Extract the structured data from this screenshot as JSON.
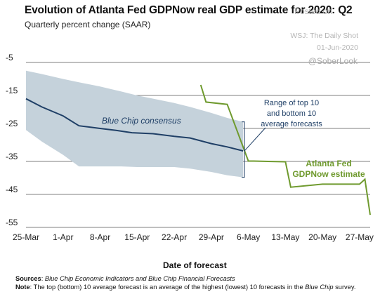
{
  "header": {
    "title": "Evolution of Atlanta Fed GDPNow real GDP estimate for 2020: Q2",
    "subtitle": "Quarterly percent change (SAAR)"
  },
  "watermark": {
    "posted": "Posted on",
    "source": "WSJ: The Daily Shot",
    "date": "01-Jun-2020",
    "handle": "@SoberLook"
  },
  "notes": {
    "sources_label": "Sources",
    "sources_text": "Blue Chip Economic Indicators and Blue Chip Financial Forecasts",
    "note_label": "Note",
    "note_text_1": "The top (bottom) 10 average forecast is an average of the highest (lowest) 10 forecasts in the ",
    "note_italic": "Blue Chip",
    "note_text_2": " survey."
  },
  "chart_data": {
    "type": "line",
    "xlabel": "Date of forecast",
    "ylabel": "",
    "xlim": [
      0,
      65
    ],
    "ylim": [
      -55,
      -5
    ],
    "ytick_values": [
      -5,
      -15,
      -25,
      -35,
      -45,
      -55
    ],
    "ytick_labels": [
      "-5",
      "-15",
      "-25",
      "-35",
      "-45",
      "-55"
    ],
    "xtick_values": [
      0,
      7,
      14,
      21,
      28,
      35,
      42,
      49,
      56,
      63
    ],
    "xtick_labels": [
      "25-Mar",
      "1-Apr",
      "8-Apr",
      "15-Apr",
      "22-Apr",
      "29-Apr",
      "6-May",
      "13-May",
      "20-May",
      "27-May"
    ],
    "grid": "horizontal",
    "colors": {
      "band": "#c5d2db",
      "consensus": "#1f3f66",
      "gdpnow": "#6f9a2e",
      "grid": "#555555",
      "annotation": "#1f3f66"
    },
    "band": {
      "name": "Range of top 10 and bottom 10 average forecasts",
      "x": [
        0,
        3,
        7,
        10,
        14,
        18,
        21,
        25,
        28,
        31,
        35,
        38,
        41
      ],
      "upper": [
        -7.5,
        -8.5,
        -10,
        -11,
        -12.3,
        -13.8,
        -15,
        -16.3,
        -17.3,
        -18.5,
        -20.3,
        -21.8,
        -23
      ],
      "lower": [
        -25.5,
        -29,
        -33,
        -36.5,
        -36.5,
        -36.5,
        -36.7,
        -36.7,
        -36.7,
        -37.2,
        -38.2,
        -39.2,
        -39.8
      ]
    },
    "series": [
      {
        "name": "Blue Chip consensus",
        "x": [
          0,
          3,
          7,
          10,
          14,
          17,
          20,
          24,
          28,
          31,
          35,
          38,
          41
        ],
        "values": [
          -16,
          -18.5,
          -21.2,
          -24.2,
          -25,
          -25.6,
          -26.3,
          -26.6,
          -27.4,
          -27.9,
          -29.6,
          -30.6,
          -31.8
        ]
      },
      {
        "name": "Atlanta Fed GDPNow estimate",
        "x": [
          33,
          34,
          38,
          42,
          43,
          49,
          50,
          56,
          63,
          64,
          65
        ],
        "values": [
          -11.8,
          -17,
          -17.7,
          -34.9,
          -34.9,
          -35.1,
          -42.8,
          -41.9,
          -41.9,
          -40.4,
          -51.2
        ]
      }
    ],
    "annotations": {
      "consensus_label": "Blue Chip consensus",
      "range_label_lines": [
        "Range of top 10",
        "and bottom 10",
        "average forecasts"
      ],
      "gdpnow_label_lines": [
        "Atlanta Fed",
        "GDPNow estimate"
      ]
    }
  }
}
